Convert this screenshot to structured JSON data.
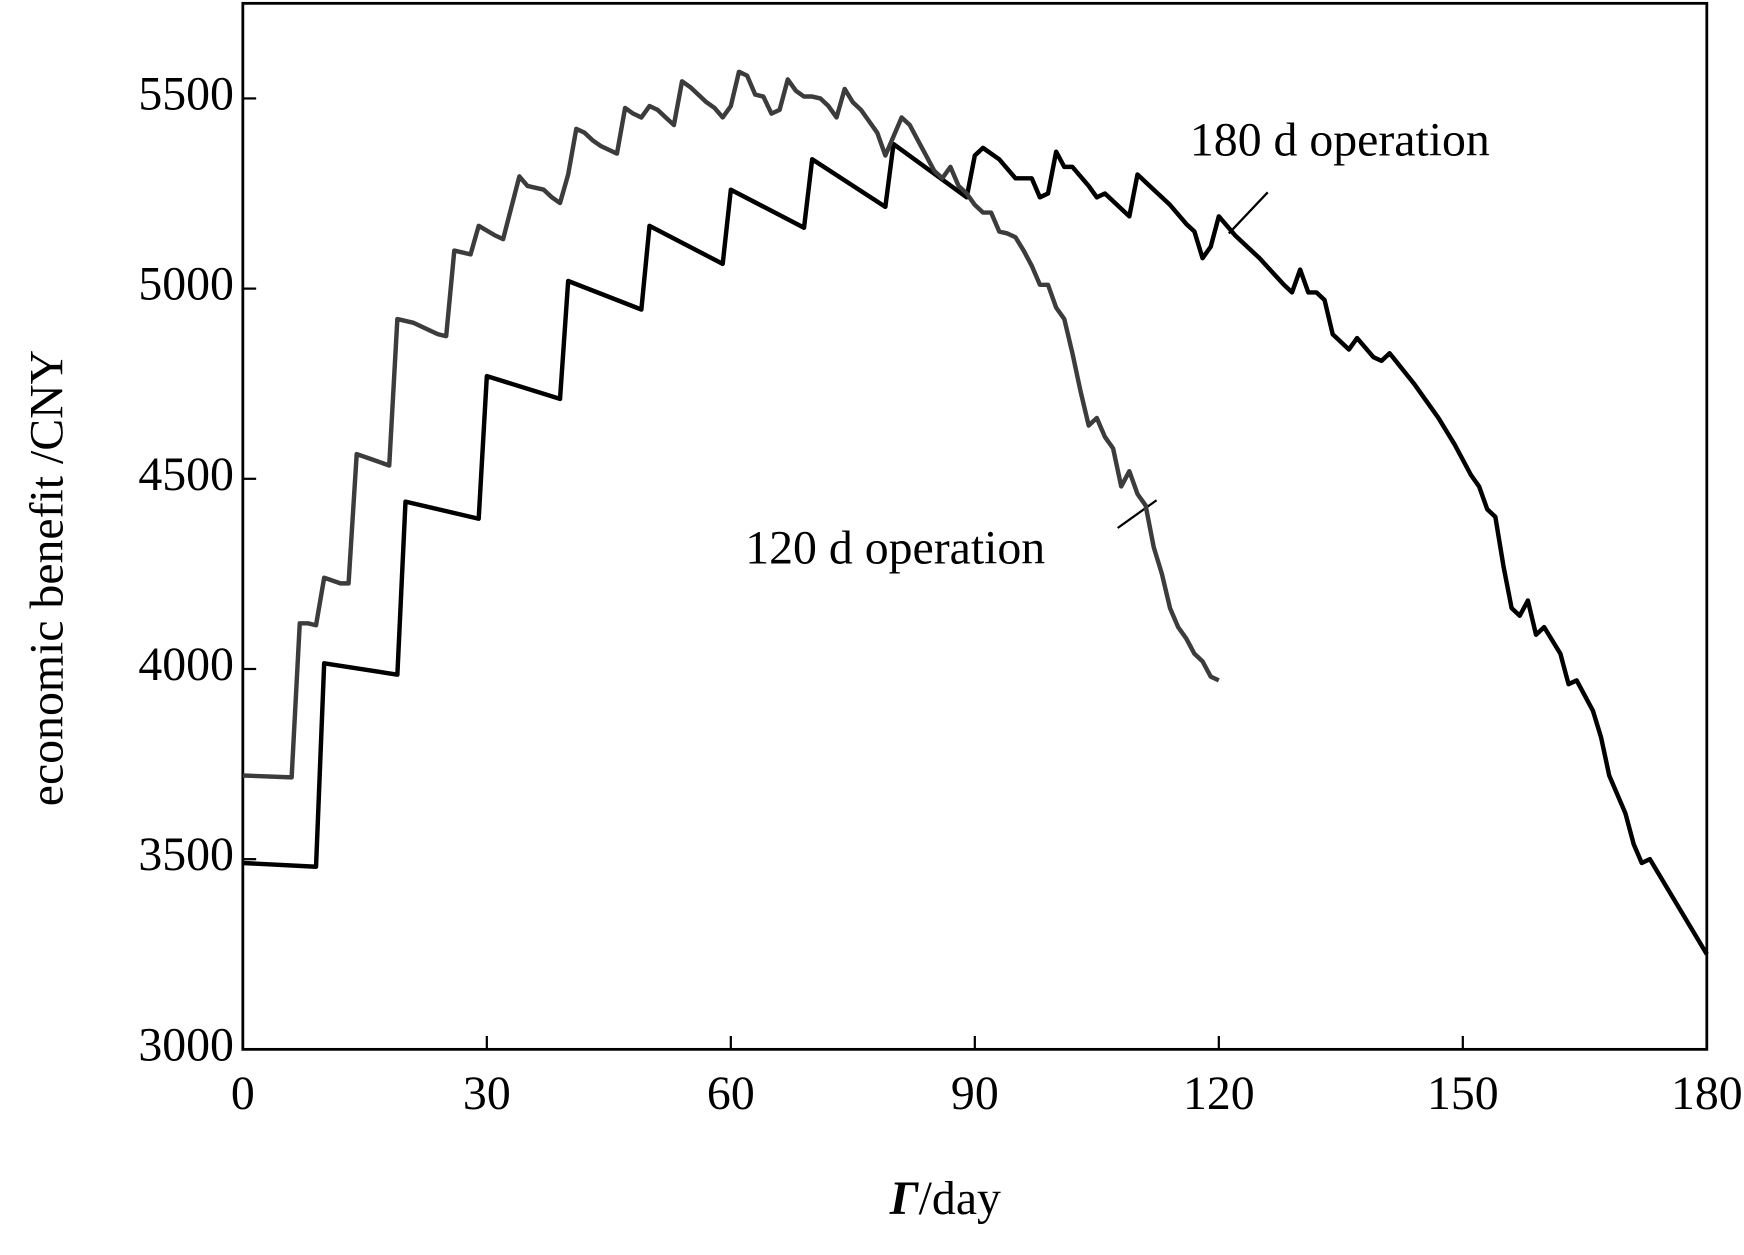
{
  "chart_data": {
    "type": "line",
    "xlabel_symbol": "Γ",
    "xlabel_unit": "/day",
    "ylabel": "economic benefit /CNY",
    "xlim": [
      0,
      180
    ],
    "xticks": [
      0,
      30,
      60,
      90,
      120,
      150,
      180
    ],
    "ylim": [
      3000,
      5750
    ],
    "yticks": [
      3000,
      3500,
      4000,
      4500,
      5000,
      5500
    ],
    "grid": false,
    "series": [
      {
        "name": "180 d operation",
        "color": "#000000",
        "x": [
          0,
          9,
          10,
          19,
          20,
          29,
          30,
          39,
          40,
          49,
          50,
          59,
          60,
          69,
          70,
          79,
          80,
          89,
          90,
          91,
          93,
          95,
          97,
          98,
          99,
          100,
          101,
          102,
          104,
          105,
          106,
          108,
          109,
          110,
          112,
          114,
          116,
          117,
          118,
          119,
          120,
          122,
          125,
          128,
          129,
          130,
          131,
          132,
          133,
          134,
          136,
          137,
          139,
          140,
          141,
          144,
          147,
          149,
          151,
          152,
          153,
          154,
          155,
          156,
          157,
          158,
          159,
          160,
          162,
          163,
          164,
          166,
          167,
          168,
          169,
          170,
          171,
          172,
          173,
          180
        ],
        "values": [
          3490,
          3480,
          4015,
          3985,
          4440,
          4395,
          4770,
          4710,
          5020,
          4945,
          5165,
          5065,
          5260,
          5160,
          5340,
          5215,
          5380,
          5240,
          5350,
          5370,
          5340,
          5290,
          5290,
          5240,
          5250,
          5360,
          5320,
          5320,
          5270,
          5240,
          5250,
          5210,
          5190,
          5300,
          5260,
          5220,
          5170,
          5150,
          5080,
          5110,
          5190,
          5140,
          5080,
          5010,
          4990,
          5050,
          4990,
          4990,
          4970,
          4880,
          4840,
          4870,
          4820,
          4810,
          4830,
          4750,
          4660,
          4590,
          4510,
          4480,
          4420,
          4400,
          4270,
          4160,
          4140,
          4180,
          4090,
          4110,
          4040,
          3960,
          3970,
          3890,
          3820,
          3720,
          3670,
          3620,
          3540,
          3490,
          3500,
          3250
        ]
      },
      {
        "name": "120 d operation",
        "color": "#3c3c3c",
        "x": [
          0,
          6,
          7,
          8,
          9,
          10,
          12,
          13,
          14,
          16,
          18,
          19,
          21,
          23,
          24,
          25,
          26,
          28,
          29,
          31,
          32,
          34,
          35,
          37,
          38,
          39,
          40,
          41,
          42,
          43,
          44,
          46,
          47,
          48,
          49,
          50,
          51,
          52,
          53,
          54,
          55,
          56,
          57,
          58,
          59,
          60,
          61,
          62,
          63,
          64,
          65,
          66,
          67,
          68,
          69,
          70,
          71,
          72,
          73,
          74,
          75,
          76,
          77,
          78,
          79,
          80,
          81,
          82,
          83,
          84,
          85,
          86,
          87,
          88,
          89,
          90,
          91,
          92,
          93,
          94,
          95,
          96,
          97,
          98,
          99,
          100,
          101,
          102,
          103,
          104,
          105,
          106,
          107,
          108,
          109,
          110,
          111,
          112,
          113,
          114,
          115,
          116,
          117,
          118,
          119,
          120
        ],
        "values": [
          3720,
          3715,
          4120,
          4120,
          4115,
          4240,
          4225,
          4225,
          4565,
          4550,
          4535,
          4920,
          4910,
          4890,
          4880,
          4875,
          5100,
          5090,
          5165,
          5140,
          5130,
          5295,
          5270,
          5260,
          5240,
          5225,
          5300,
          5420,
          5410,
          5390,
          5375,
          5355,
          5475,
          5460,
          5450,
          5480,
          5470,
          5450,
          5430,
          5545,
          5530,
          5510,
          5490,
          5475,
          5450,
          5480,
          5570,
          5560,
          5510,
          5505,
          5460,
          5470,
          5550,
          5520,
          5505,
          5505,
          5500,
          5480,
          5450,
          5525,
          5490,
          5470,
          5440,
          5410,
          5350,
          5400,
          5450,
          5430,
          5390,
          5350,
          5310,
          5290,
          5320,
          5270,
          5250,
          5220,
          5200,
          5200,
          5150,
          5145,
          5135,
          5100,
          5060,
          5010,
          5010,
          4950,
          4920,
          4830,
          4730,
          4640,
          4660,
          4610,
          4580,
          4480,
          4520,
          4460,
          4430,
          4320,
          4250,
          4160,
          4110,
          4080,
          4040,
          4020,
          3980,
          3970
        ]
      }
    ]
  }
}
